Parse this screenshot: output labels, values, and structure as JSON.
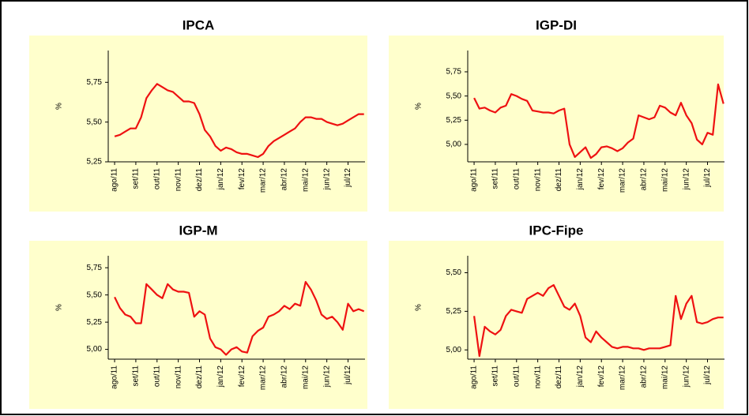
{
  "chart_data": [
    {
      "type": "line",
      "title": "IPCA",
      "ylabel": "%",
      "color": "#ee1111",
      "x": [
        0,
        0.25,
        0.5,
        0.75,
        1,
        1.25,
        1.5,
        1.75,
        2,
        2.25,
        2.5,
        2.75,
        3,
        3.25,
        3.5,
        3.75,
        4,
        4.25,
        4.5,
        4.75,
        5,
        5.25,
        5.5,
        5.75,
        6,
        6.25,
        6.5,
        6.75,
        7,
        7.25,
        7.5,
        7.75,
        8,
        8.25,
        8.5,
        8.75,
        9,
        9.25,
        9.5,
        9.75,
        10,
        10.25,
        10.5,
        10.75,
        11,
        11.25,
        11.5,
        11.75
      ],
      "values": [
        5.41,
        5.42,
        5.44,
        5.46,
        5.46,
        5.53,
        5.65,
        5.7,
        5.74,
        5.72,
        5.7,
        5.69,
        5.66,
        5.63,
        5.63,
        5.62,
        5.55,
        5.45,
        5.41,
        5.35,
        5.32,
        5.34,
        5.33,
        5.31,
        5.3,
        5.3,
        5.29,
        5.28,
        5.3,
        5.35,
        5.38,
        5.4,
        5.42,
        5.44,
        5.46,
        5.5,
        5.53,
        5.53,
        5.52,
        5.52,
        5.5,
        5.49,
        5.48,
        5.49,
        5.51,
        5.53,
        5.55,
        5.55
      ],
      "xlim": [
        -0.3,
        11.8
      ],
      "xticks": [
        {
          "value": 0,
          "label": "ago/11"
        },
        {
          "value": 1,
          "label": "set/11"
        },
        {
          "value": 2,
          "label": "out/11"
        },
        {
          "value": 3,
          "label": "nov/11"
        },
        {
          "value": 4,
          "label": "dez/11"
        },
        {
          "value": 5,
          "label": "jan/12"
        },
        {
          "value": 6,
          "label": "fev/12"
        },
        {
          "value": 7,
          "label": "mar/12"
        },
        {
          "value": 8,
          "label": "abr/12"
        },
        {
          "value": 9,
          "label": "mai/12"
        },
        {
          "value": 10,
          "label": "jun/12"
        },
        {
          "value": 11,
          "label": "jul/12"
        }
      ],
      "ylim": [
        5.25,
        5.95
      ],
      "yticks": [
        {
          "value": 5.25,
          "label": "5,25"
        },
        {
          "value": 5.5,
          "label": "5,50"
        },
        {
          "value": 5.75,
          "label": "5,75"
        }
      ]
    },
    {
      "type": "line",
      "title": "IGP-DI",
      "ylabel": "%",
      "color": "#ee1111",
      "x": [
        0,
        0.25,
        0.5,
        0.75,
        1,
        1.25,
        1.5,
        1.75,
        2,
        2.25,
        2.5,
        2.75,
        3,
        3.25,
        3.5,
        3.75,
        4,
        4.25,
        4.5,
        4.75,
        5,
        5.25,
        5.5,
        5.75,
        6,
        6.25,
        6.5,
        6.75,
        7,
        7.25,
        7.5,
        7.75,
        8,
        8.25,
        8.5,
        8.75,
        9,
        9.25,
        9.5,
        9.75,
        10,
        10.25,
        10.5,
        10.75,
        11,
        11.25,
        11.5,
        11.75
      ],
      "values": [
        5.48,
        5.37,
        5.38,
        5.35,
        5.33,
        5.38,
        5.4,
        5.52,
        5.5,
        5.47,
        5.45,
        5.35,
        5.34,
        5.33,
        5.33,
        5.32,
        5.35,
        5.37,
        5.0,
        4.87,
        4.92,
        4.97,
        4.86,
        4.9,
        4.97,
        4.98,
        4.96,
        4.93,
        4.96,
        5.02,
        5.06,
        5.3,
        5.28,
        5.26,
        5.28,
        5.4,
        5.38,
        5.33,
        5.3,
        5.43,
        5.3,
        5.22,
        5.05,
        5.0,
        5.12,
        5.1,
        5.62,
        5.42
      ],
      "xlim": [
        -0.3,
        11.8
      ],
      "xticks": [
        {
          "value": 0,
          "label": "ago/11"
        },
        {
          "value": 1,
          "label": "set/11"
        },
        {
          "value": 2,
          "label": "out/11"
        },
        {
          "value": 3,
          "label": "nov/11"
        },
        {
          "value": 4,
          "label": "dez/11"
        },
        {
          "value": 5,
          "label": "jan/12"
        },
        {
          "value": 6,
          "label": "fev/12"
        },
        {
          "value": 7,
          "label": "mar/12"
        },
        {
          "value": 8,
          "label": "abr/12"
        },
        {
          "value": 9,
          "label": "mai/12"
        },
        {
          "value": 10,
          "label": "jun/12"
        },
        {
          "value": 11,
          "label": "jul/12"
        }
      ],
      "ylim": [
        4.82,
        5.97
      ],
      "yticks": [
        {
          "value": 5,
          "label": "5,00"
        },
        {
          "value": 5.25,
          "label": "5,25"
        },
        {
          "value": 5.5,
          "label": "5,50"
        },
        {
          "value": 5.75,
          "label": "5,75"
        }
      ]
    },
    {
      "type": "line",
      "title": "IGP-M",
      "ylabel": "%",
      "color": "#ee1111",
      "x": [
        0,
        0.25,
        0.5,
        0.75,
        1,
        1.25,
        1.5,
        1.75,
        2,
        2.25,
        2.5,
        2.75,
        3,
        3.25,
        3.5,
        3.75,
        4,
        4.25,
        4.5,
        4.75,
        5,
        5.25,
        5.5,
        5.75,
        6,
        6.25,
        6.5,
        6.75,
        7,
        7.25,
        7.5,
        7.75,
        8,
        8.25,
        8.5,
        8.75,
        9,
        9.25,
        9.5,
        9.75,
        10,
        10.25,
        10.5,
        10.75,
        11,
        11.25,
        11.5,
        11.75
      ],
      "values": [
        5.48,
        5.38,
        5.32,
        5.3,
        5.24,
        5.24,
        5.6,
        5.55,
        5.5,
        5.47,
        5.6,
        5.55,
        5.53,
        5.53,
        5.52,
        5.3,
        5.35,
        5.32,
        5.1,
        5.02,
        5.0,
        4.95,
        5.0,
        5.02,
        4.98,
        4.97,
        5.12,
        5.17,
        5.2,
        5.3,
        5.32,
        5.35,
        5.4,
        5.37,
        5.42,
        5.4,
        5.62,
        5.55,
        5.45,
        5.32,
        5.28,
        5.3,
        5.25,
        5.18,
        5.42,
        5.35,
        5.37,
        5.35
      ],
      "xlim": [
        -0.3,
        11.8
      ],
      "xticks": [
        {
          "value": 0,
          "label": "ago/11"
        },
        {
          "value": 1,
          "label": "set/11"
        },
        {
          "value": 2,
          "label": "out/11"
        },
        {
          "value": 3,
          "label": "nov/11"
        },
        {
          "value": 4,
          "label": "dez/11"
        },
        {
          "value": 5,
          "label": "jan/12"
        },
        {
          "value": 6,
          "label": "fev/12"
        },
        {
          "value": 7,
          "label": "mar/12"
        },
        {
          "value": 8,
          "label": "abr/12"
        },
        {
          "value": 9,
          "label": "mai/12"
        },
        {
          "value": 10,
          "label": "jun/12"
        },
        {
          "value": 11,
          "label": "jul/12"
        }
      ],
      "ylim": [
        4.91,
        5.86
      ],
      "yticks": [
        {
          "value": 5,
          "label": "5,00"
        },
        {
          "value": 5.25,
          "label": "5,25"
        },
        {
          "value": 5.5,
          "label": "5,50"
        },
        {
          "value": 5.75,
          "label": "5,75"
        }
      ]
    },
    {
      "type": "line",
      "title": "IPC-Fipe",
      "ylabel": "%",
      "color": "#ee1111",
      "x": [
        0,
        0.25,
        0.5,
        0.75,
        1,
        1.25,
        1.5,
        1.75,
        2,
        2.25,
        2.5,
        2.75,
        3,
        3.25,
        3.5,
        3.75,
        4,
        4.25,
        4.5,
        4.75,
        5,
        5.25,
        5.5,
        5.75,
        6,
        6.25,
        6.5,
        6.75,
        7,
        7.25,
        7.5,
        7.75,
        8,
        8.25,
        8.5,
        8.75,
        9,
        9.25,
        9.5,
        9.75,
        10,
        10.25,
        10.5,
        10.75,
        11,
        11.25,
        11.5,
        11.75
      ],
      "values": [
        5.22,
        4.96,
        5.15,
        5.12,
        5.1,
        5.13,
        5.22,
        5.26,
        5.25,
        5.24,
        5.33,
        5.35,
        5.37,
        5.35,
        5.4,
        5.42,
        5.35,
        5.28,
        5.26,
        5.3,
        5.22,
        5.08,
        5.05,
        5.12,
        5.08,
        5.05,
        5.02,
        5.01,
        5.02,
        5.02,
        5.01,
        5.01,
        5.0,
        5.01,
        5.01,
        5.01,
        5.02,
        5.03,
        5.35,
        5.2,
        5.3,
        5.35,
        5.18,
        5.17,
        5.18,
        5.2,
        5.21,
        5.21
      ],
      "xlim": [
        -0.3,
        11.8
      ],
      "xticks": [
        {
          "value": 0,
          "label": "ago/11"
        },
        {
          "value": 1,
          "label": "set/11"
        },
        {
          "value": 2,
          "label": "out/11"
        },
        {
          "value": 3,
          "label": "nov/11"
        },
        {
          "value": 4,
          "label": "dez/11"
        },
        {
          "value": 5,
          "label": "jan/12"
        },
        {
          "value": 6,
          "label": "fev/12"
        },
        {
          "value": 7,
          "label": "mar/12"
        },
        {
          "value": 8,
          "label": "abr/12"
        },
        {
          "value": 9,
          "label": "mai/12"
        },
        {
          "value": 10,
          "label": "jun/12"
        },
        {
          "value": 11,
          "label": "jul/12"
        }
      ],
      "ylim": [
        4.94,
        5.61
      ],
      "yticks": [
        {
          "value": 5,
          "label": "5,00"
        },
        {
          "value": 5.25,
          "label": "5,25"
        },
        {
          "value": 5.5,
          "label": "5,50"
        }
      ]
    }
  ]
}
